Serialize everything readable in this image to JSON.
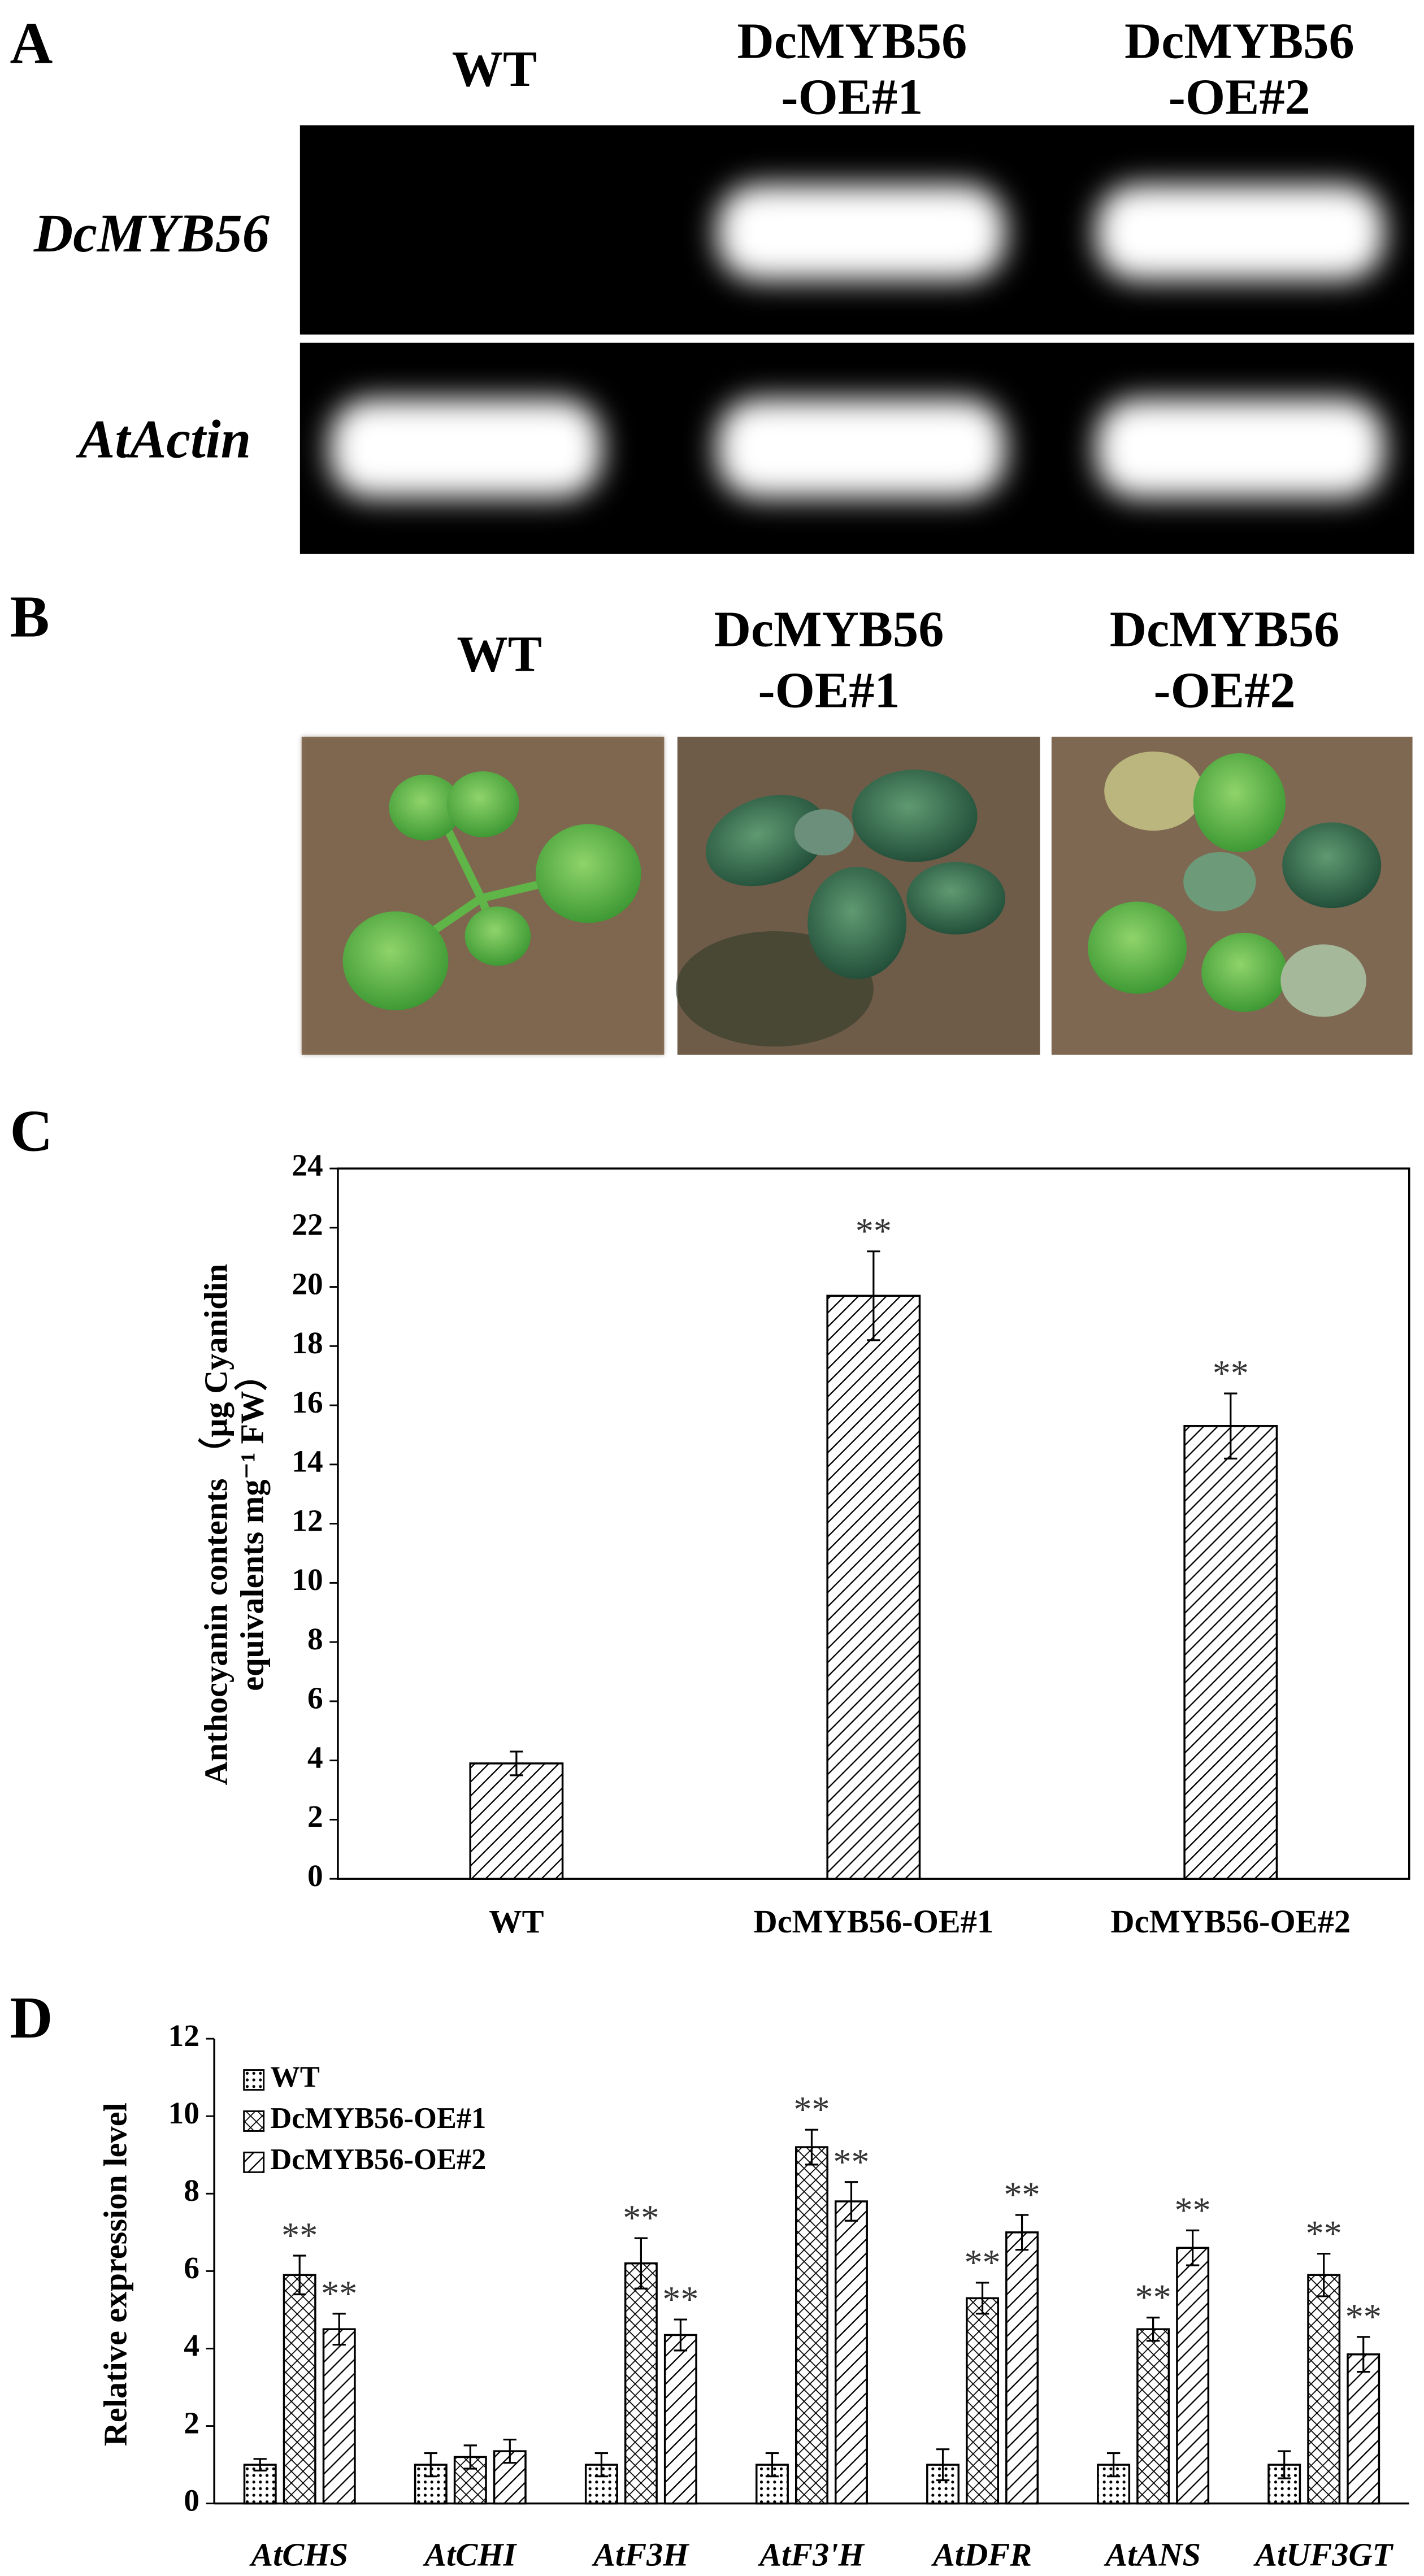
{
  "panels": {
    "A": {
      "label": "A",
      "columns": [
        [
          "WT"
        ],
        [
          "DcMYB56",
          "-OE#1"
        ],
        [
          "DcMYB56",
          "-OE#2"
        ]
      ],
      "rows": [
        "DcMYB56",
        "AtActin"
      ]
    },
    "B": {
      "label": "B",
      "columns": [
        [
          "WT"
        ],
        [
          "DcMYB56",
          "-OE#1"
        ],
        [
          "DcMYB56",
          "-OE#2"
        ]
      ]
    },
    "C": {
      "label": "C"
    },
    "D": {
      "label": "D"
    }
  },
  "chart_data": [
    {
      "type": "bar",
      "ylabel": [
        "Anthocyanin contents （μg Cyanidin",
        "equivalents mg⁻¹ FW）"
      ],
      "categories": [
        "WT",
        "DcMYB56-OE#1",
        "DcMYB56-OE#2"
      ],
      "values": [
        3.9,
        19.7,
        15.3
      ],
      "errors": [
        0.4,
        1.5,
        1.1
      ],
      "significance": [
        null,
        "**",
        "**"
      ],
      "pattern": "diagonal",
      "ylim": [
        0,
        24
      ],
      "yticks": [
        0,
        2,
        4,
        6,
        8,
        10,
        12,
        14,
        16,
        18,
        20,
        22,
        24
      ],
      "frame": true
    },
    {
      "type": "bar",
      "ylabel": [
        "Relative expression level"
      ],
      "categories": [
        "AtCHS",
        "AtCHI",
        "AtF3H",
        "AtF3'H",
        "AtDFR",
        "AtANS",
        "AtUF3GT"
      ],
      "series": [
        {
          "name": "WT",
          "pattern": "dots",
          "values": [
            1,
            1,
            1,
            1,
            1,
            1,
            1
          ],
          "errors": [
            0.15,
            0.3,
            0.3,
            0.3,
            0.4,
            0.3,
            0.35
          ],
          "significance": [
            null,
            null,
            null,
            null,
            null,
            null,
            null
          ]
        },
        {
          "name": "DcMYB56-OE#1",
          "pattern": "crosshatch",
          "values": [
            5.9,
            1.2,
            6.2,
            9.2,
            5.3,
            4.5,
            5.9
          ],
          "errors": [
            0.5,
            0.3,
            0.65,
            0.45,
            0.4,
            0.3,
            0.55
          ],
          "significance": [
            "**",
            null,
            "**",
            "**",
            "**",
            "**",
            "**"
          ]
        },
        {
          "name": "DcMYB56-OE#2",
          "pattern": "diagonal",
          "values": [
            4.5,
            1.35,
            4.35,
            7.8,
            7.0,
            6.6,
            3.85
          ],
          "errors": [
            0.4,
            0.3,
            0.4,
            0.5,
            0.45,
            0.45,
            0.45
          ],
          "significance": [
            "**",
            null,
            "**",
            "**",
            "**",
            "**",
            "**"
          ]
        }
      ],
      "ylim": [
        0,
        12
      ],
      "yticks": [
        0,
        2,
        4,
        6,
        8,
        10,
        12
      ],
      "legend": "upper left",
      "frame": false
    }
  ]
}
